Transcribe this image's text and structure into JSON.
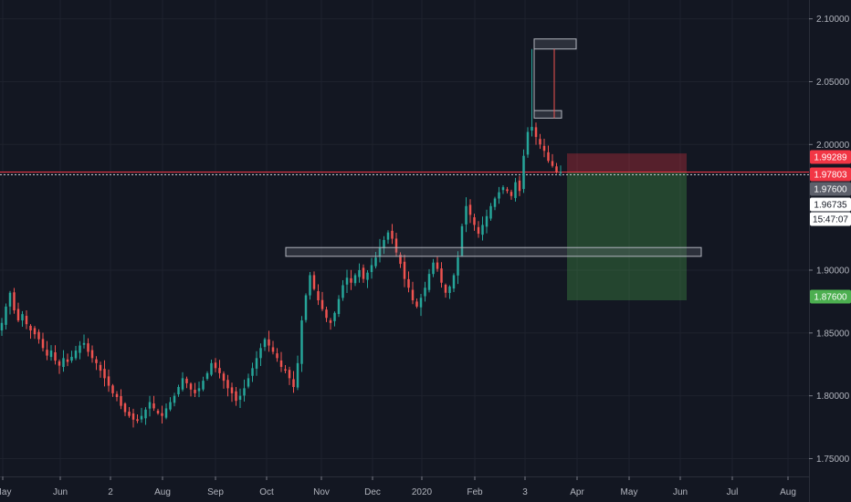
{
  "chart_data": {
    "type": "candlestick",
    "y_range": [
      1.73,
      2.115
    ],
    "price_ticks": [
      {
        "value": 2.1,
        "label": "2.10000"
      },
      {
        "value": 2.05,
        "label": "2.05000"
      },
      {
        "value": 2.0,
        "label": "2.00000"
      },
      {
        "value": 1.9,
        "label": "1.90000"
      },
      {
        "value": 1.85,
        "label": "1.85000"
      },
      {
        "value": 1.8,
        "label": "1.80000"
      },
      {
        "value": 1.75,
        "label": "1.75000"
      }
    ],
    "time_labels": [
      "May",
      "Jun",
      "2",
      "Aug",
      "Sep",
      "Oct",
      "Nov",
      "Dec",
      "2020",
      "Feb",
      "3",
      "Apr",
      "May",
      "Jun",
      "Jul",
      "Aug"
    ],
    "price_tags": [
      {
        "id": "stop",
        "label": "1.99289",
        "value": 1.99289,
        "bg": "#f23645",
        "fg": "#ffffff"
      },
      {
        "id": "entry",
        "label": "1.97803",
        "value": 1.97803,
        "bg": "#f23645",
        "fg": "#ffffff"
      },
      {
        "id": "current",
        "label": "1.97600",
        "value": 1.976,
        "bg": "#5d606b",
        "fg": "#ffffff"
      },
      {
        "id": "bid",
        "label": "1.96735",
        "value": 1.96735,
        "bg": "#ffffff",
        "fg": "#131722"
      },
      {
        "id": "countdown",
        "label": "15:47:07",
        "value": 1.9575,
        "bg": "#ffffff",
        "fg": "#131722"
      },
      {
        "id": "target",
        "label": "1.87600",
        "value": 1.876,
        "bg": "#4caf50",
        "fg": "#ffffff"
      }
    ],
    "closes": [
      1.858,
      1.871,
      1.882,
      1.868,
      1.86,
      1.865,
      1.857,
      1.852,
      1.849,
      1.845,
      1.838,
      1.832,
      1.836,
      1.828,
      1.824,
      1.83,
      1.827,
      1.831,
      1.836,
      1.84,
      1.842,
      1.835,
      1.83,
      1.826,
      1.82,
      1.814,
      1.808,
      1.802,
      1.799,
      1.792,
      1.787,
      1.784,
      1.781,
      1.78,
      1.784,
      1.789,
      1.795,
      1.79,
      1.786,
      1.784,
      1.79,
      1.795,
      1.8,
      1.807,
      1.814,
      1.81,
      1.805,
      1.802,
      1.806,
      1.812,
      1.818,
      1.826,
      1.822,
      1.818,
      1.812,
      1.806,
      1.802,
      1.796,
      1.8,
      1.806,
      1.814,
      1.822,
      1.83,
      1.838,
      1.845,
      1.84,
      1.835,
      1.83,
      1.823,
      1.82,
      1.814,
      1.807,
      1.826,
      1.86,
      1.88,
      1.896,
      1.885,
      1.876,
      1.869,
      1.862,
      1.858,
      1.866,
      1.877,
      1.888,
      1.894,
      1.89,
      1.896,
      1.9,
      1.893,
      1.898,
      1.904,
      1.91,
      1.918,
      1.924,
      1.93,
      1.925,
      1.914,
      1.905,
      1.893,
      1.886,
      1.876,
      1.871,
      1.878,
      1.886,
      1.897,
      1.906,
      1.901,
      1.89,
      1.882,
      1.887,
      1.896,
      1.91,
      1.935,
      1.951,
      1.944,
      1.936,
      1.929,
      1.936,
      1.943,
      1.951,
      1.957,
      1.962,
      1.966,
      1.963,
      1.959,
      1.97,
      1.963,
      1.991,
      2.01,
      2.014,
      2.006,
      2.0,
      1.995,
      1.987,
      1.983,
      1.978,
      1.978
    ]
  }
}
